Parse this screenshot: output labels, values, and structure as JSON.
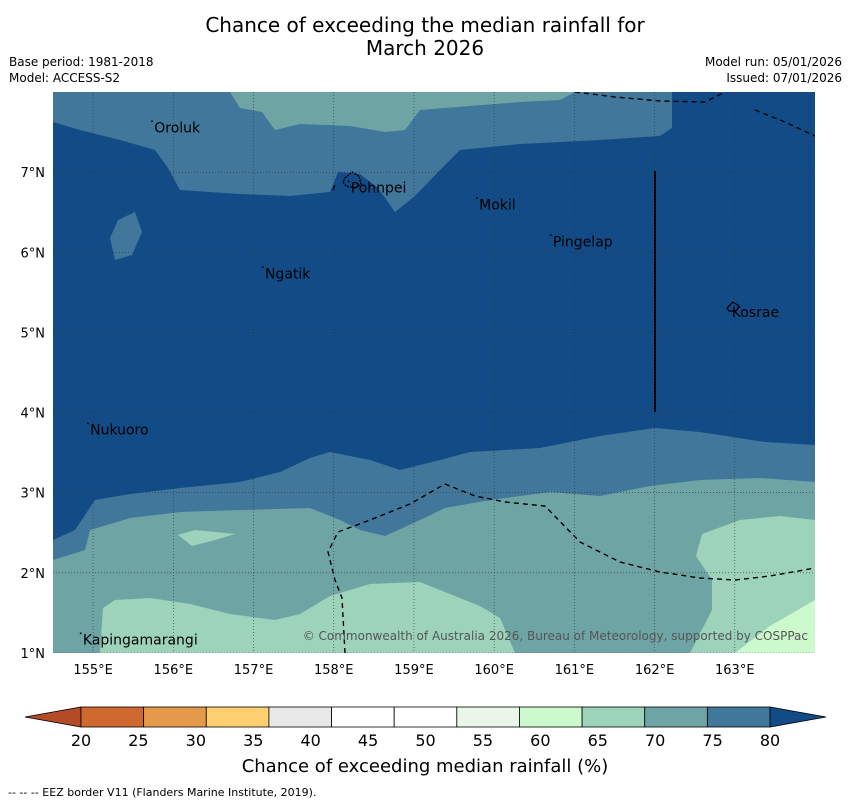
{
  "header": {
    "title_line1": "Chance of exceeding the median rainfall for",
    "title_line2": "March 2026",
    "base_period": "Base period: 1981-2018",
    "model": "Model: ACCESS-S2",
    "model_run": "Model run: 05/01/2026",
    "issued": "Issued: 07/01/2026"
  },
  "map": {
    "extent": {
      "lon_min": 154.5,
      "lon_max": 164,
      "lat_min": 1,
      "lat_max": 8
    },
    "lon_ticks": [
      {
        "value": 155,
        "label": "155°E"
      },
      {
        "value": 156,
        "label": "156°E"
      },
      {
        "value": 157,
        "label": "157°E"
      },
      {
        "value": 158,
        "label": "158°E"
      },
      {
        "value": 159,
        "label": "159°E"
      },
      {
        "value": 160,
        "label": "160°E"
      },
      {
        "value": 161,
        "label": "161°E"
      },
      {
        "value": 162,
        "label": "162°E"
      },
      {
        "value": 163,
        "label": "163°E"
      }
    ],
    "lat_ticks": [
      {
        "value": 1,
        "label": "1°N"
      },
      {
        "value": 2,
        "label": "2°N"
      },
      {
        "value": 3,
        "label": "3°N"
      },
      {
        "value": 4,
        "label": "4°N"
      },
      {
        "value": 5,
        "label": "5°N"
      },
      {
        "value": 6,
        "label": "6°N"
      },
      {
        "value": 7,
        "label": "7°N"
      }
    ],
    "places": [
      {
        "name": "Oroluk",
        "lon": 155.75,
        "lat": 7.62
      },
      {
        "name": "Pohnpei",
        "lon": 158.2,
        "lat": 6.87
      },
      {
        "name": "Mokil",
        "lon": 159.8,
        "lat": 6.66
      },
      {
        "name": "Pingelap",
        "lon": 160.72,
        "lat": 6.2
      },
      {
        "name": "Ngatik",
        "lon": 157.13,
        "lat": 5.8
      },
      {
        "name": "Kosrae",
        "lon": 162.95,
        "lat": 5.32
      },
      {
        "name": "Nukuoro",
        "lon": 154.95,
        "lat": 3.85
      },
      {
        "name": "Kapingamarangi",
        "lon": 154.86,
        "lat": 1.23
      }
    ],
    "copyright": "© Commonwealth of Australia 2026, Bureau of Meteorology, supported by COSPPac"
  },
  "legend": {
    "colors": [
      "#b44b27",
      "#d0692f",
      "#e49a4a",
      "#fdcf70",
      "#e8e8e8",
      "#ffffff",
      "#ffffff",
      "#eaf6e9",
      "#cdfacd",
      "#9dd3ba",
      "#6fa4a5",
      "#40779a",
      "#134b87"
    ],
    "ticks": [
      "20",
      "25",
      "30",
      "35",
      "40",
      "45",
      "50",
      "55",
      "60",
      "65",
      "70",
      "75",
      "80"
    ],
    "label": "Chance of exceeding median rainfall (%)"
  },
  "footnote": "--  --  -- EEZ border V11 (Flanders Marine Institute, 2019)."
}
